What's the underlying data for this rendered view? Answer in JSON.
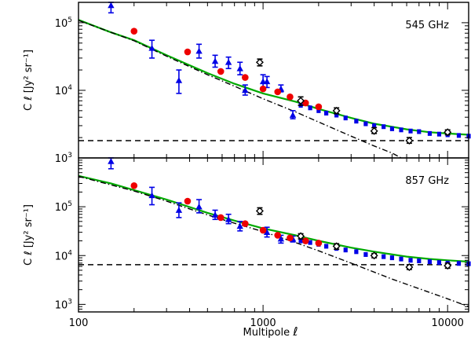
{
  "chart_data": {
    "type": "scatter",
    "xlabel": "Multipole",
    "xlabel_symbol": "ℓ",
    "xscale": "log",
    "xlim": [
      100,
      13000
    ],
    "x_ticks": [
      {
        "value": 100,
        "label": "100"
      },
      {
        "value": 1000,
        "label": "1000"
      },
      {
        "value": 10000,
        "label": "10000"
      }
    ],
    "ylabel": "C ℓ [Jy² sr⁻¹]",
    "panels": [
      {
        "id": "545",
        "label": "545 GHz",
        "yscale": "log",
        "ylim": [
          1000,
          200000
        ],
        "y_ticks": [
          {
            "value": 1000,
            "mant": "10",
            "exp": "3"
          },
          {
            "value": 10000,
            "mant": "10",
            "exp": "4"
          },
          {
            "value": 100000,
            "mant": "10",
            "exp": "5"
          }
        ],
        "series": [
          {
            "name": "total model",
            "style": "green-solid",
            "points": [
              [
                100,
                110000
              ],
              [
                150,
                72000
              ],
              [
                200,
                55000
              ],
              [
                300,
                33000
              ],
              [
                500,
                18000
              ],
              [
                700,
                12500
              ],
              [
                1000,
                9000
              ],
              [
                1500,
                6800
              ],
              [
                2000,
                5300
              ],
              [
                3000,
                3900
              ],
              [
                4000,
                3200
              ],
              [
                6000,
                2650
              ],
              [
                8000,
                2400
              ],
              [
                10000,
                2300
              ],
              [
                13000,
                2200
              ]
            ]
          },
          {
            "name": "clustered (1-halo + 2-halo)",
            "style": "black-dashdot",
            "points": [
              [
                100,
                108000
              ],
              [
                200,
                54000
              ],
              [
                300,
                32000
              ],
              [
                500,
                17000
              ],
              [
                700,
                11500
              ],
              [
                1000,
                7500
              ],
              [
                1500,
                4800
              ],
              [
                2000,
                3400
              ],
              [
                3000,
                2100
              ],
              [
                4000,
                1500
              ],
              [
                5000,
                1180
              ],
              [
                5600,
                1000
              ]
            ]
          },
          {
            "name": "shot noise",
            "style": "black-dashed",
            "points": [
              [
                100,
                1800
              ],
              [
                13000,
                1800
              ]
            ]
          },
          {
            "name": "blue triangles",
            "style": "blue-triangle",
            "points": [
              [
                150,
                180000,
                240000,
                140000
              ],
              [
                250,
                42000,
                55000,
                30000
              ],
              [
                350,
                14000,
                20000,
                9000
              ],
              [
                450,
                38000,
                48000,
                30000
              ],
              [
                550,
                27000,
                33000,
                22000
              ],
              [
                650,
                26000,
                31000,
                21000
              ],
              [
                750,
                21000,
                26000,
                17000
              ],
              [
                800,
                10000,
                12000,
                8500
              ],
              [
                1000,
                13500,
                17000,
                11000
              ],
              [
                1050,
                13500,
                16000,
                11000
              ],
              [
                1250,
                10500,
                12000,
                9500
              ],
              [
                1450,
                4300,
                5000,
                3800
              ]
            ]
          },
          {
            "name": "blue squares",
            "style": "blue-square",
            "points": [
              [
                1600,
                6000
              ],
              [
                1800,
                5500
              ],
              [
                2000,
                5000
              ],
              [
                2200,
                4600
              ],
              [
                2500,
                4300
              ],
              [
                2800,
                3900
              ],
              [
                3200,
                3500
              ],
              [
                3600,
                3200
              ],
              [
                4000,
                3000
              ],
              [
                4500,
                2900
              ],
              [
                5000,
                2700
              ],
              [
                5600,
                2600
              ],
              [
                6300,
                2500
              ],
              [
                7000,
                2450
              ],
              [
                8000,
                2300
              ],
              [
                9000,
                2250
              ],
              [
                10000,
                2200
              ],
              [
                11500,
                2150
              ],
              [
                13000,
                2100
              ]
            ]
          },
          {
            "name": "red circles",
            "style": "red-circle",
            "points": [
              [
                200,
                75000
              ],
              [
                390,
                37000
              ],
              [
                590,
                19000
              ],
              [
                800,
                15500
              ],
              [
                1000,
                10500
              ],
              [
                1200,
                9500
              ],
              [
                1400,
                8000
              ],
              [
                1700,
                6500
              ],
              [
                2000,
                5700
              ]
            ]
          },
          {
            "name": "black diamonds",
            "style": "black-diamond",
            "points": [
              [
                960,
                26000,
                29000,
                23000
              ],
              [
                1600,
                7000,
                8000,
                6000
              ],
              [
                2500,
                5000,
                5500,
                4500
              ],
              [
                4000,
                2500,
                2800,
                2300
              ],
              [
                6200,
                1800,
                2000,
                1650
              ],
              [
                10000,
                2400,
                2600,
                2200
              ]
            ]
          }
        ]
      },
      {
        "id": "857",
        "label": "857 GHz",
        "yscale": "log",
        "ylim": [
          700,
          1000000
        ],
        "y_ticks": [
          {
            "value": 1000,
            "mant": "10",
            "exp": "3"
          },
          {
            "value": 10000,
            "mant": "10",
            "exp": "4"
          },
          {
            "value": 100000,
            "mant": "10",
            "exp": "5"
          }
        ],
        "series": [
          {
            "name": "total model",
            "style": "green-solid",
            "points": [
              [
                100,
                430000
              ],
              [
                150,
                300000
              ],
              [
                200,
                220000
              ],
              [
                300,
                140000
              ],
              [
                500,
                75000
              ],
              [
                700,
                52000
              ],
              [
                1000,
                36000
              ],
              [
                1500,
                26000
              ],
              [
                2000,
                20000
              ],
              [
                3000,
                14500
              ],
              [
                4000,
                12000
              ],
              [
                6000,
                9500
              ],
              [
                8000,
                8500
              ],
              [
                10000,
                8000
              ],
              [
                13000,
                7500
              ]
            ]
          },
          {
            "name": "clustered (1-halo + 2-halo)",
            "style": "black-dashdot",
            "points": [
              [
                100,
                420000
              ],
              [
                200,
                210000
              ],
              [
                300,
                130000
              ],
              [
                500,
                68000
              ],
              [
                700,
                46000
              ],
              [
                1000,
                31000
              ],
              [
                1500,
                18500
              ],
              [
                2000,
                12500
              ],
              [
                3000,
                7000
              ],
              [
                5000,
                3300
              ],
              [
                7000,
                2100
              ],
              [
                10000,
                1300
              ],
              [
                13000,
                900
              ]
            ]
          },
          {
            "name": "shot noise",
            "style": "black-dashed",
            "points": [
              [
                100,
                6500
              ],
              [
                13000,
                6500
              ]
            ]
          },
          {
            "name": "blue triangles",
            "style": "blue-triangle",
            "points": [
              [
                150,
                850000,
                1200000,
                600000
              ],
              [
                250,
                170000,
                250000,
                110000
              ],
              [
                350,
                85000,
                120000,
                60000
              ],
              [
                450,
                100000,
                140000,
                75000
              ],
              [
                550,
                68000,
                85000,
                55000
              ],
              [
                650,
                55000,
                70000,
                45000
              ],
              [
                750,
                40000,
                50000,
                32000
              ],
              [
                1050,
                30000,
                38000,
                24000
              ],
              [
                1250,
                22000,
                26000,
                18000
              ],
              [
                1450,
                22000,
                25000,
                19000
              ]
            ]
          },
          {
            "name": "blue squares",
            "style": "blue-square",
            "points": [
              [
                1600,
                20000
              ],
              [
                1800,
                18500
              ],
              [
                2000,
                17000
              ],
              [
                2200,
                15500
              ],
              [
                2500,
                14000
              ],
              [
                2800,
                13000
              ],
              [
                3200,
                12000
              ],
              [
                3600,
                10500
              ],
              [
                4000,
                10000
              ],
              [
                4500,
                9500
              ],
              [
                5000,
                9000
              ],
              [
                5600,
                8500
              ],
              [
                6300,
                8000
              ],
              [
                7000,
                7800
              ],
              [
                8000,
                7500
              ],
              [
                9000,
                7200
              ],
              [
                10000,
                7000
              ],
              [
                11500,
                6900
              ],
              [
                13000,
                6800
              ]
            ]
          },
          {
            "name": "red circles",
            "style": "red-circle",
            "points": [
              [
                200,
                270000
              ],
              [
                390,
                130000
              ],
              [
                590,
                60000
              ],
              [
                800,
                45000
              ],
              [
                1000,
                33000
              ],
              [
                1200,
                26000
              ],
              [
                1400,
                23000
              ],
              [
                1700,
                20000
              ],
              [
                2000,
                18000
              ]
            ]
          },
          {
            "name": "black diamonds",
            "style": "black-diamond",
            "points": [
              [
                960,
                82000,
                95000,
                70000
              ],
              [
                1600,
                25000,
                28000,
                22000
              ],
              [
                2500,
                15500,
                17500,
                13500
              ],
              [
                4000,
                10000,
                11000,
                9000
              ],
              [
                6200,
                5800,
                6500,
                5200
              ],
              [
                10000,
                6200,
                7000,
                5500
              ]
            ]
          }
        ]
      }
    ]
  }
}
